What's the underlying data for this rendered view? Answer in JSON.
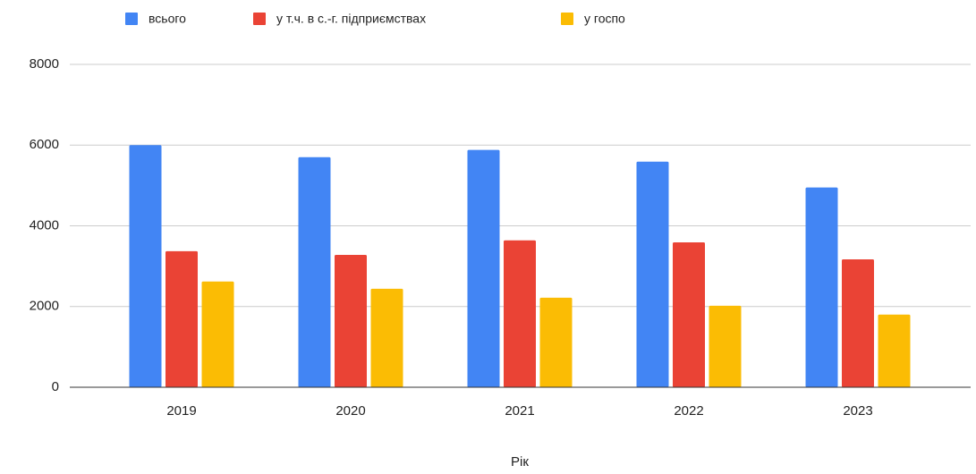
{
  "chart_data": {
    "type": "bar",
    "x_label": "Рік",
    "categories": [
      "2019",
      "2020",
      "2021",
      "2022",
      "2023"
    ],
    "series": [
      {
        "name": "всього",
        "color": "#4285f4",
        "values": [
          6000,
          5700,
          5880,
          5590,
          4950
        ]
      },
      {
        "name": "у т.ч. в с.-г. підприємствах",
        "color": "#ea4335",
        "values": [
          3370,
          3280,
          3640,
          3590,
          3170
        ]
      },
      {
        "name": "у госпо",
        "color": "#fbbc04",
        "values": [
          2620,
          2440,
          2220,
          2020,
          1800
        ]
      }
    ],
    "ylim": [
      0,
      8000
    ],
    "yticks": [
      0,
      2000,
      4000,
      6000,
      8000
    ],
    "grid": true,
    "legend": "top"
  }
}
